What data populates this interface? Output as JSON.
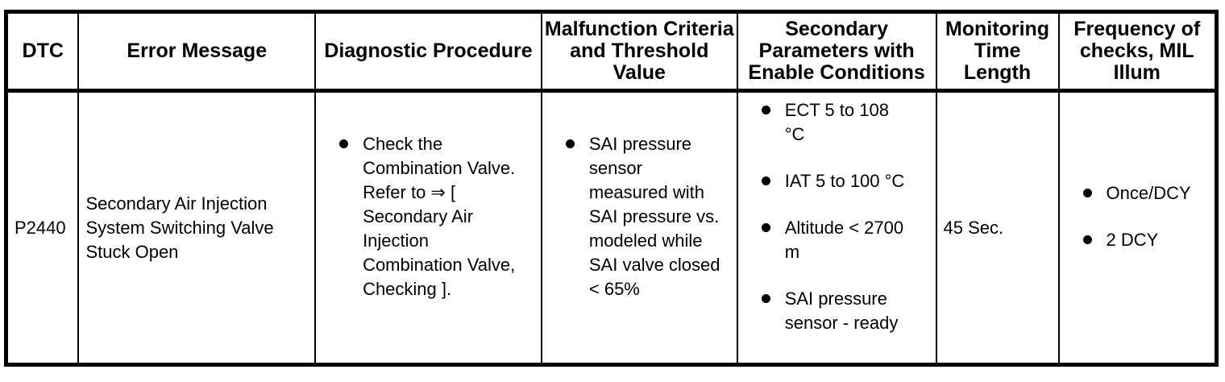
{
  "colors": {
    "border": "#000000",
    "text": "#000000",
    "background": "#ffffff"
  },
  "icons": {
    "bullet-icon": "●"
  },
  "table": {
    "columns": [
      {
        "label": "DTC"
      },
      {
        "label": "Error Message"
      },
      {
        "label": "Diagnostic Procedure"
      },
      {
        "label": "Malfunction Criteria and Threshold Value"
      },
      {
        "label": "Secondary Parameters with Enable Conditions"
      },
      {
        "label": "Monitoring Time Length"
      },
      {
        "label": "Frequency of checks, MIL Illum"
      }
    ],
    "row": {
      "dtc": "P2440",
      "error_message": "Secondary Air Injection System Switching Valve Stuck Open",
      "diagnostic_procedure": [
        "Check the Combination Valve. Refer to ⇒ [ Secondary Air Injection Combination Valve, Checking ]."
      ],
      "malfunction_criteria": [
        "SAI pressure sensor measured with SAI pressure vs. modeled while SAI valve closed < 65%"
      ],
      "secondary_parameters": [
        "ECT 5 to 108 °C",
        "IAT 5 to 100 °C",
        "Altitude < 2700 m",
        "SAI pressure sensor - ready"
      ],
      "monitoring_time": "45 Sec.",
      "frequency": [
        "Once/DCY",
        "2 DCY"
      ]
    }
  }
}
